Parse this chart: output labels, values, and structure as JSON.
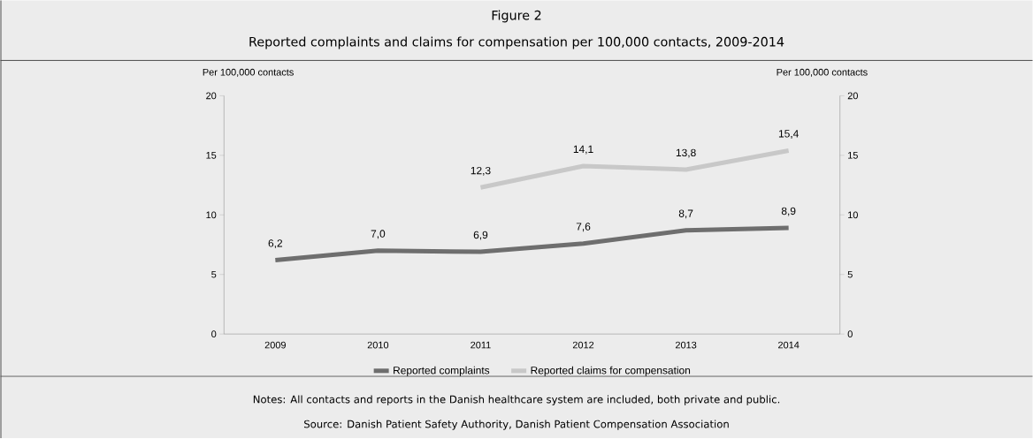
{
  "chart_data": {
    "type": "line",
    "title": "Figure 2",
    "subtitle": "Reported complaints and claims for compensation per 100,000 contacts, 2009-2014",
    "ylabel": "Per 100,000 contacts",
    "y2label": "Per 100,000 contacts",
    "categories": [
      "2009",
      "2010",
      "2011",
      "2012",
      "2013",
      "2014"
    ],
    "series": [
      {
        "name": "Reported complaints",
        "color": "#6e6e6e",
        "values": [
          6.2,
          7.0,
          6.9,
          7.6,
          8.7,
          8.9
        ],
        "value_labels": [
          "6,2",
          "7,0",
          "6,9",
          "7,6",
          "8,7",
          "8,9"
        ]
      },
      {
        "name": "Reported claims for compensation",
        "color": "#c8c8c8",
        "values": [
          null,
          null,
          12.3,
          14.1,
          13.8,
          15.4
        ],
        "value_labels": [
          null,
          null,
          "12,3",
          "14,1",
          "13,8",
          "15,4"
        ]
      }
    ],
    "ylim": [
      0,
      20
    ],
    "yticks": [
      0,
      5,
      10,
      15,
      20
    ],
    "y2lim": [
      0,
      20
    ],
    "y2ticks": [
      0,
      5,
      10,
      15,
      20
    ],
    "grid": false,
    "legend": "bottom",
    "marker": "none",
    "line_style": "solid",
    "annotations": [
      "Notes: All contacts and reports in the Danish healthcare system are included, both private and public.",
      "Source: Danish Patient Safety Authority, Danish Patient Compensation Association"
    ]
  }
}
